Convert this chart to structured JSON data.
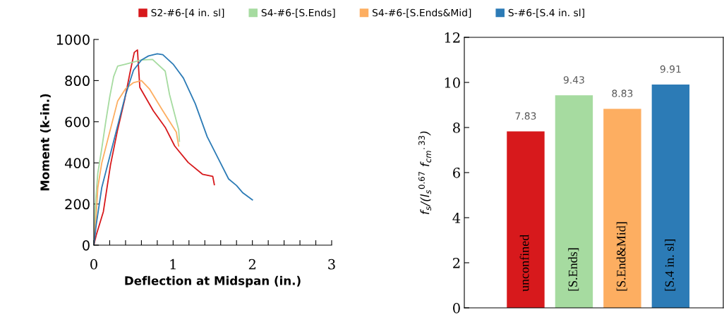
{
  "chart_data": [
    {
      "type": "line",
      "xlabel": "Deflection at Midspan (in.)",
      "ylabel": "Moment (k-in.)",
      "xlim": [
        0,
        3
      ],
      "ylim": [
        0,
        1000
      ],
      "xticks": [
        0,
        {
          "value": 0.2,
          "label": null
        },
        {
          "value": 0.4,
          "label": null
        },
        {
          "value": 0.6,
          "label": null
        },
        {
          "value": 0.8,
          "label": null
        },
        1,
        {
          "value": 1.2,
          "label": null
        },
        {
          "value": 1.4,
          "label": null
        },
        {
          "value": 1.6,
          "label": null
        },
        {
          "value": 1.8,
          "label": null
        },
        2,
        {
          "value": 2.2,
          "label": null
        },
        {
          "value": 2.4,
          "label": null
        },
        {
          "value": 2.6,
          "label": null
        },
        {
          "value": 2.8,
          "label": null
        },
        3
      ],
      "yticks": [
        0,
        200,
        400,
        600,
        800,
        1000
      ],
      "legend": "top",
      "grid": false,
      "marker": "none",
      "line_style": "solid",
      "series": [
        {
          "name": "S2-#6-[4 in. sl]",
          "color": "#d7191c",
          "x": [
            0,
            0.03,
            0.12,
            0.21,
            0.3,
            0.39,
            0.46,
            0.51,
            0.55,
            0.58,
            0.75,
            0.9,
            1.02,
            1.19,
            1.37,
            1.5,
            1.52
          ],
          "values": [
            0,
            49,
            163,
            390,
            561,
            710,
            846,
            937,
            949,
            767,
            653,
            573,
            482,
            402,
            345,
            334,
            294
          ]
        },
        {
          "name": "S4-#6-[S.Ends]",
          "color": "#a6dba0",
          "x": [
            0,
            0.02,
            0.05,
            0.1,
            0.15,
            0.2,
            0.25,
            0.3,
            0.4,
            0.5,
            0.6,
            0.74,
            0.9,
            0.955,
            1.07,
            1.08
          ],
          "values": [
            0,
            200,
            350,
            470,
            600,
            720,
            820,
            870,
            880,
            890,
            900,
            903,
            846,
            732,
            561,
            505
          ]
        },
        {
          "name": "S4-#6-[S.Ends&Mid]",
          "color": "#fdae61",
          "x": [
            0,
            0.03,
            0.05,
            0.1,
            0.2,
            0.3,
            0.4,
            0.5,
            0.6,
            0.7,
            0.87,
            1.04,
            1.07
          ],
          "values": [
            0,
            150,
            280,
            400,
            550,
            700,
            760,
            790,
            800,
            760,
            653,
            550,
            482
          ]
        },
        {
          "name": "S-#6-[S.4 in. sl]",
          "color": "#2c7bb6",
          "x": [
            0,
            0.03,
            0.1,
            0.2,
            0.3,
            0.4,
            0.5,
            0.6,
            0.69,
            0.8,
            0.87,
            1.0,
            1.13,
            1.28,
            1.43,
            1.58,
            1.7,
            1.8,
            1.88,
            2.0
          ],
          "values": [
            0,
            100,
            280,
            430,
            580,
            730,
            850,
            900,
            920,
            930,
            926,
            880,
            812,
            687,
            527,
            413,
            322,
            290,
            254,
            220
          ]
        }
      ]
    },
    {
      "type": "bar",
      "ylabel": "f$_{s}$/(l$_{s}$$^{0.67}$ f$_{cm}$$^{.33}$)",
      "ylim": [
        0,
        12
      ],
      "yticks": [
        0,
        2,
        4,
        6,
        8,
        10,
        12
      ],
      "grid": false,
      "data_labels": true,
      "categories": [
        "unconfined",
        "[S.Ends]",
        "[S.End&Mid]",
        "[S.4 in. sl]"
      ],
      "values": [
        7.83,
        9.43,
        8.83,
        9.91
      ],
      "colors": [
        "#d7191c",
        "#a6dba0",
        "#fdae61",
        "#2c7bb6"
      ]
    }
  ]
}
